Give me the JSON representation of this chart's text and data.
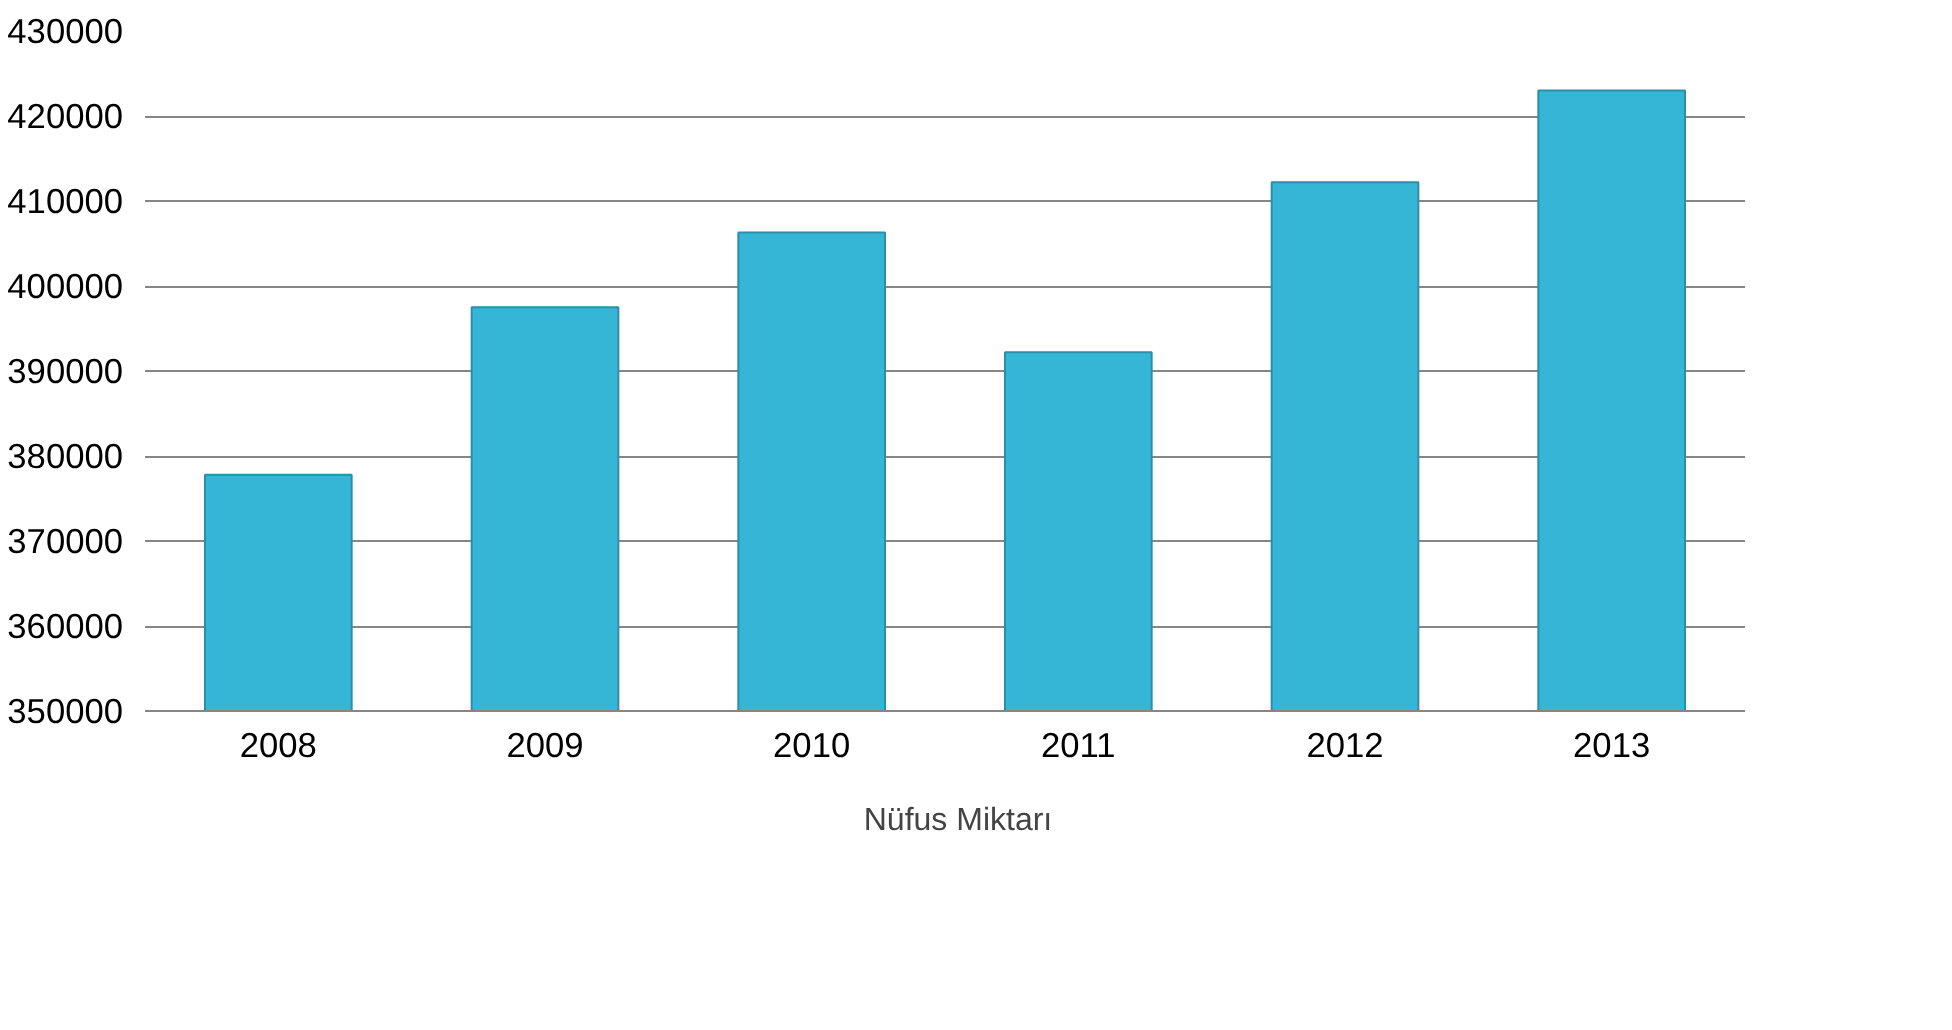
{
  "chart_data": {
    "type": "bar",
    "categories": [
      "2008",
      "2009",
      "2010",
      "2011",
      "2012",
      "2013"
    ],
    "series": [
      {
        "name": "Nüfus Miktarı",
        "color": "#35b6d6",
        "values": [
          377800,
          397500,
          406300,
          392200,
          412200,
          423000
        ]
      }
    ],
    "ylim": [
      350000,
      430000
    ],
    "yticks": [
      350000,
      360000,
      370000,
      380000,
      390000,
      400000,
      410000,
      420000,
      430000
    ],
    "grid": "y",
    "legend": "bottom"
  }
}
